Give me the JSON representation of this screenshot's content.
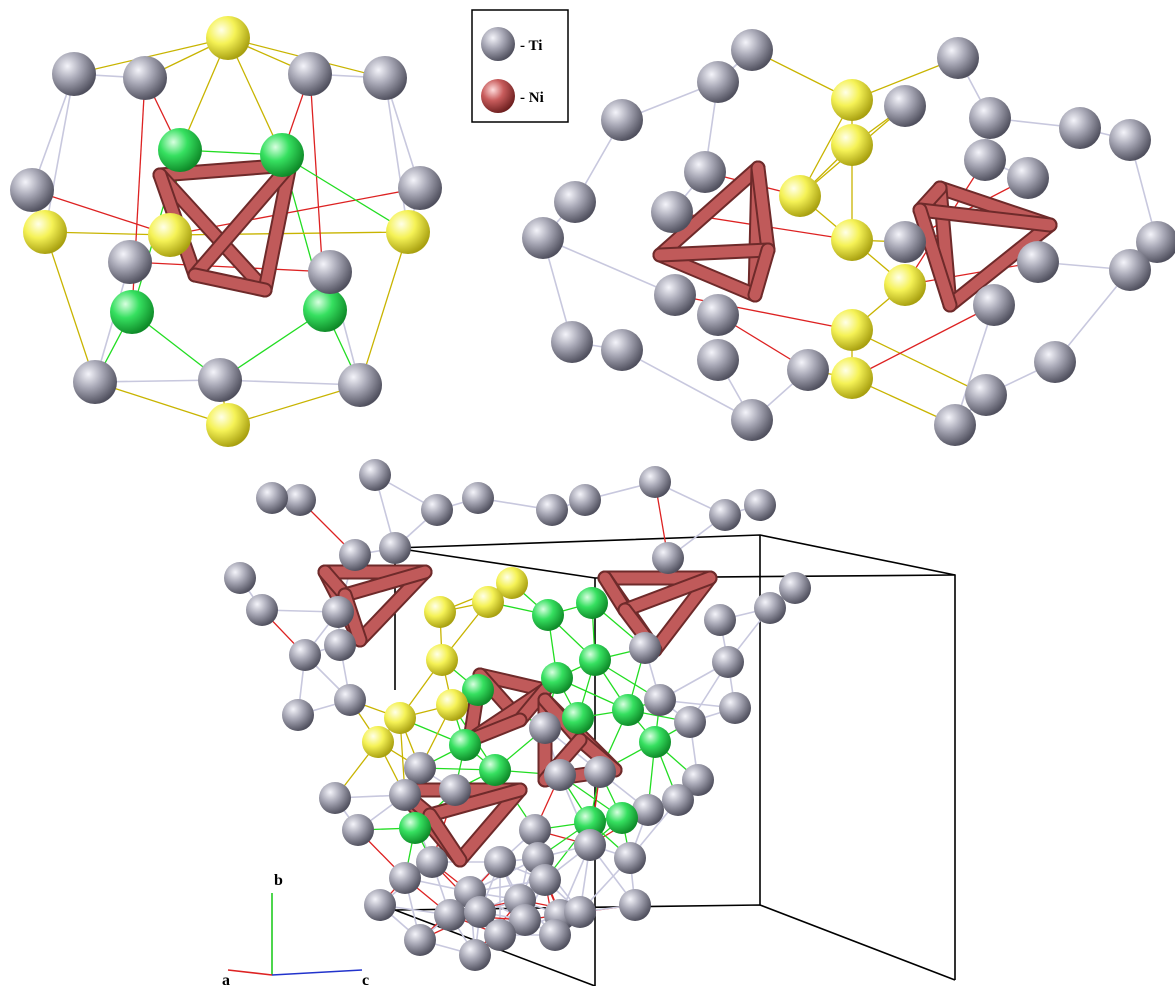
{
  "legend": {
    "items": [
      {
        "label": "- Ti",
        "color": "#9a9aa8"
      },
      {
        "label": "- Ni",
        "color": "#c05a5a"
      }
    ]
  },
  "axes": {
    "a": "a",
    "b": "b",
    "c": "c"
  },
  "colors": {
    "ti": "#9a9aa8",
    "ni": "#c05a5a",
    "yellow": "#f2ef50",
    "green": "#33dd55",
    "bond_grey": "#c8c8de",
    "bond_red": "#dd2222",
    "bond_yellow": "#c8b400",
    "bond_green": "#22dd22"
  }
}
